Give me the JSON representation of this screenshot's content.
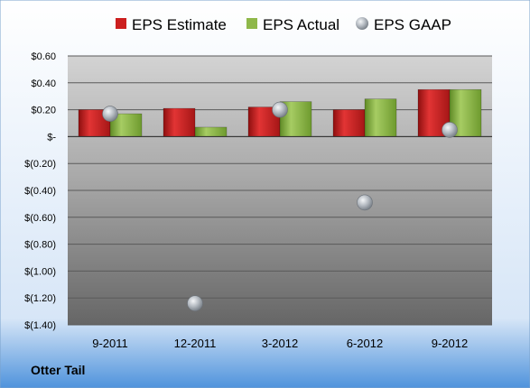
{
  "chart_data": {
    "type": "bar",
    "categories": [
      "9-2011",
      "12-2011",
      "3-2012",
      "6-2012",
      "9-2012"
    ],
    "series": [
      {
        "name": "EPS Estimate",
        "kind": "bar",
        "color": "#cc1f1f",
        "values": [
          0.2,
          0.21,
          0.22,
          0.2,
          0.35
        ]
      },
      {
        "name": "EPS Actual",
        "kind": "bar",
        "color": "#8fb84a",
        "values": [
          0.17,
          0.07,
          0.26,
          0.28,
          0.35
        ]
      },
      {
        "name": "EPS GAAP",
        "kind": "scatter",
        "color": "#b8bfc6",
        "values": [
          0.17,
          -1.24,
          0.2,
          -0.49,
          0.05
        ]
      }
    ],
    "yticks": [
      {
        "value": 0.6,
        "label": "$0.60"
      },
      {
        "value": 0.4,
        "label": "$0.40"
      },
      {
        "value": 0.2,
        "label": "$0.20"
      },
      {
        "value": 0.0,
        "label": "$-"
      },
      {
        "value": -0.2,
        "label": "$(0.20)"
      },
      {
        "value": -0.4,
        "label": "$(0.40)"
      },
      {
        "value": -0.6,
        "label": "$(0.60)"
      },
      {
        "value": -0.8,
        "label": "$(0.80)"
      },
      {
        "value": -1.0,
        "label": "$(1.00)"
      },
      {
        "value": -1.2,
        "label": "$(1.20)"
      },
      {
        "value": -1.4,
        "label": "$(1.40)"
      }
    ],
    "ylim": [
      -1.4,
      0.6
    ],
    "grid": true,
    "legend_position": "top",
    "company": "Otter Tail"
  }
}
